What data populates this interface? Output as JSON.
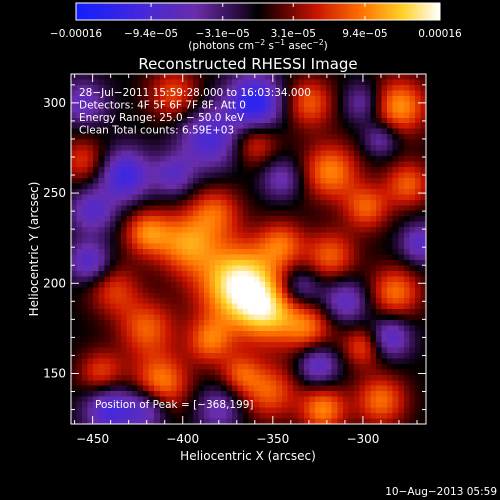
{
  "chart_data": {
    "type": "heatmap",
    "title": "Reconstructed RHESSI Image",
    "xlabel": "Heliocentric X (arcsec)",
    "ylabel": "Heliocentric Y (arcsec)",
    "xlim": [
      -462,
      -265
    ],
    "ylim": [
      122,
      316
    ],
    "xticks": [
      -450,
      -400,
      -350,
      -300
    ],
    "xtick_labels": [
      "−450",
      "−400",
      "−350",
      "−300"
    ],
    "yticks": [
      150,
      200,
      250,
      300
    ],
    "ytick_labels": [
      "150",
      "200",
      "250",
      "300"
    ],
    "colorbar": {
      "range": [
        -0.00016,
        0.00016
      ],
      "tick_values": [
        -0.00016,
        -9.4e-05,
        -3.1e-05,
        3.1e-05,
        9.4e-05,
        0.00016
      ],
      "tick_labels": [
        "−0.00016",
        "−9.4e−05",
        "−3.1e−05",
        "3.1e−05",
        "9.4e−05",
        "0.00016"
      ],
      "units_prefix": "(photons cm",
      "units_exp1": "−2",
      "units_mid": " s",
      "units_exp2": "−1",
      "units_mid2": " asec",
      "units_exp3": "−2",
      "units_suffix": ")"
    },
    "info_lines": [
      "28−Jul−2011 15:59:28.000 to 16:03:34.000",
      "Detectors: 4F 5F 6F 7F 8F, Att 0",
      "Energy Range: 25.0 − 50.0 keV",
      "Clean     Total counts: 6.59E+03"
    ],
    "peak_text": "Position of Peak = [−368,199]",
    "peak": {
      "x": -368,
      "y": 199,
      "value": 0.00016
    },
    "blobs": [
      {
        "x": -368,
        "y": 199,
        "r": 16,
        "v": 1.0
      },
      {
        "x": -352,
        "y": 183,
        "r": 12,
        "v": 0.55
      },
      {
        "x": -398,
        "y": 222,
        "r": 12,
        "v": 0.6
      },
      {
        "x": -382,
        "y": 240,
        "r": 10,
        "v": 0.45
      },
      {
        "x": -420,
        "y": 228,
        "r": 9,
        "v": 0.55
      },
      {
        "x": -438,
        "y": 196,
        "r": 10,
        "v": 0.4
      },
      {
        "x": -420,
        "y": 175,
        "r": 11,
        "v": 0.5
      },
      {
        "x": -412,
        "y": 145,
        "r": 11,
        "v": 0.6
      },
      {
        "x": -385,
        "y": 168,
        "r": 9,
        "v": 0.5
      },
      {
        "x": -330,
        "y": 175,
        "r": 10,
        "v": 0.5
      },
      {
        "x": -318,
        "y": 215,
        "r": 10,
        "v": 0.5
      },
      {
        "x": -345,
        "y": 222,
        "r": 9,
        "v": 0.45
      },
      {
        "x": -318,
        "y": 262,
        "r": 11,
        "v": 0.6
      },
      {
        "x": -298,
        "y": 242,
        "r": 9,
        "v": 0.5
      },
      {
        "x": -282,
        "y": 195,
        "r": 10,
        "v": 0.55
      },
      {
        "x": -275,
        "y": 255,
        "r": 9,
        "v": 0.5
      },
      {
        "x": -280,
        "y": 298,
        "r": 11,
        "v": 0.65
      },
      {
        "x": -330,
        "y": 300,
        "r": 10,
        "v": 0.5
      },
      {
        "x": -360,
        "y": 278,
        "r": 9,
        "v": 0.45
      },
      {
        "x": -405,
        "y": 305,
        "r": 10,
        "v": 0.45
      },
      {
        "x": -455,
        "y": 268,
        "r": 9,
        "v": 0.4
      },
      {
        "x": -445,
        "y": 150,
        "r": 9,
        "v": 0.45
      },
      {
        "x": -352,
        "y": 140,
        "r": 11,
        "v": 0.5
      },
      {
        "x": -322,
        "y": 130,
        "r": 9,
        "v": 0.6
      },
      {
        "x": -290,
        "y": 135,
        "r": 10,
        "v": 0.55
      },
      {
        "x": -300,
        "y": 165,
        "r": 8,
        "v": 0.45
      },
      {
        "x": -368,
        "y": 150,
        "r": 8,
        "v": 0.4
      },
      {
        "x": -450,
        "y": 240,
        "r": 9,
        "v": -0.5
      },
      {
        "x": -432,
        "y": 260,
        "r": 10,
        "v": -0.7
      },
      {
        "x": -455,
        "y": 300,
        "r": 9,
        "v": -0.45
      },
      {
        "x": -385,
        "y": 280,
        "r": 12,
        "v": -0.6
      },
      {
        "x": -360,
        "y": 300,
        "r": 11,
        "v": -0.85
      },
      {
        "x": -345,
        "y": 258,
        "r": 8,
        "v": -0.4
      },
      {
        "x": -452,
        "y": 212,
        "r": 8,
        "v": -0.55
      },
      {
        "x": -440,
        "y": 130,
        "r": 10,
        "v": -0.65
      },
      {
        "x": -420,
        "y": 130,
        "r": 8,
        "v": -0.5
      },
      {
        "x": -325,
        "y": 155,
        "r": 8,
        "v": -0.55
      },
      {
        "x": -310,
        "y": 190,
        "r": 9,
        "v": -0.5
      },
      {
        "x": -335,
        "y": 198,
        "r": 8,
        "v": -0.45
      },
      {
        "x": -285,
        "y": 170,
        "r": 8,
        "v": -0.55
      },
      {
        "x": -300,
        "y": 300,
        "r": 8,
        "v": -0.4
      },
      {
        "x": -268,
        "y": 222,
        "r": 8,
        "v": -0.5
      },
      {
        "x": -380,
        "y": 130,
        "r": 9,
        "v": -0.4
      },
      {
        "x": -405,
        "y": 260,
        "r": 8,
        "v": -0.45
      },
      {
        "x": -290,
        "y": 280,
        "r": 7,
        "v": -0.4
      }
    ]
  },
  "footer": {
    "timestamp": "10−Aug−2013 05:59"
  },
  "colors": {
    "background": "#000000",
    "text": "#ffffff"
  }
}
